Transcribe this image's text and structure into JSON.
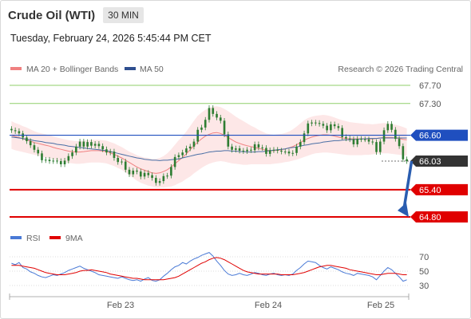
{
  "header": {
    "title": "Crude Oil (WTI)",
    "timeframe": "30 MIN",
    "datetime": "Tuesday, February 24, 2026 5:45:44 PM CET"
  },
  "legend": {
    "bb_label": "MA 20 + Bollinger Bands",
    "ma50_label": "MA 50",
    "credit": "Research © 2026 Trading Central",
    "rsi_label": "RSI",
    "rsi_ma_label": "9MA"
  },
  "colors": {
    "bollinger_fill": "#fde3e3",
    "ma20": "#f08080",
    "ma50": "#4a6fa5",
    "candle": "#2e7d32",
    "resistance_light": "#8fcf6a",
    "support": "#e00000",
    "pivot": "#1f4fbf",
    "arrow": "#2a5db0",
    "rsi": "#4a7ad6",
    "rsi_ma": "#e00000"
  },
  "chart_data": [
    {
      "type": "candlestick",
      "title": "",
      "ylim": [
        64.6,
        67.8
      ],
      "x_ticks": [
        "Feb 23",
        "Feb 24",
        "Feb 25"
      ],
      "price_levels": [
        {
          "value": "67.70",
          "kind": "resistance",
          "style": "plain"
        },
        {
          "value": "67.30",
          "kind": "resistance",
          "style": "plain"
        },
        {
          "value": "66.60",
          "kind": "pivot",
          "style": "box"
        },
        {
          "value": "66.03",
          "kind": "last",
          "style": "box-dark"
        },
        {
          "value": "65.40",
          "kind": "support",
          "style": "box"
        },
        {
          "value": "64.80",
          "kind": "support",
          "style": "box"
        }
      ],
      "close": [
        66.71,
        66.69,
        66.64,
        66.55,
        66.47,
        66.38,
        66.28,
        66.2,
        66.05,
        66.06,
        66.03,
        66.04,
        66.03,
        65.96,
        66.04,
        66.14,
        66.22,
        66.35,
        66.46,
        66.35,
        66.45,
        66.37,
        66.41,
        66.36,
        66.29,
        66.22,
        66.24,
        66.1,
        66.01,
        66.02,
        65.84,
        65.74,
        65.82,
        65.8,
        65.69,
        65.77,
        65.72,
        65.66,
        65.55,
        65.59,
        65.7,
        65.71,
        65.9,
        66.12,
        66.16,
        66.22,
        66.31,
        66.35,
        66.46,
        66.72,
        66.77,
        66.94,
        67.2,
        67.07,
        66.99,
        66.92,
        66.62,
        66.35,
        66.28,
        66.31,
        66.26,
        66.25,
        66.28,
        66.27,
        66.4,
        66.33,
        66.32,
        66.19,
        66.27,
        66.28,
        66.26,
        66.24,
        66.24,
        66.2,
        66.21,
        66.35,
        66.45,
        66.64,
        66.86,
        66.88,
        66.87,
        66.85,
        66.81,
        66.71,
        66.84,
        66.8,
        66.76,
        66.56,
        66.53,
        66.51,
        66.4,
        66.52,
        66.51,
        66.51,
        66.46,
        66.45,
        66.23,
        66.46,
        66.71,
        66.85,
        66.72,
        66.52,
        66.36,
        66.07,
        66.03
      ],
      "ma20": [
        66.6,
        66.57,
        66.55,
        66.52,
        66.5,
        66.47,
        66.44,
        66.42,
        66.4,
        66.38,
        66.36,
        66.33,
        66.31,
        66.29,
        66.27,
        66.25,
        66.24,
        66.23,
        66.23,
        66.24,
        66.25,
        66.26,
        66.26,
        66.26,
        66.25,
        66.24,
        66.21,
        66.18,
        66.14,
        66.1,
        66.05,
        66.0,
        65.95,
        65.9,
        65.86,
        65.83,
        65.8,
        65.77,
        65.76,
        65.77,
        65.8,
        65.84,
        65.9,
        65.97,
        66.04,
        66.11,
        66.19,
        66.28,
        66.37,
        66.45,
        66.52,
        66.58,
        66.62,
        66.65,
        66.66,
        66.64,
        66.6,
        66.55,
        66.5,
        66.45,
        66.42,
        66.39,
        66.37,
        66.35,
        66.33,
        66.31,
        66.29,
        66.27,
        66.26,
        66.26,
        66.27,
        66.28,
        66.3,
        66.32,
        66.35,
        66.39,
        66.44,
        66.49,
        66.53,
        66.56,
        66.58,
        66.6,
        66.61,
        66.61,
        66.6,
        66.58,
        66.56,
        66.54,
        66.53,
        66.52,
        66.52,
        66.52,
        66.52,
        66.52,
        66.52,
        66.52,
        66.53,
        66.54,
        66.55,
        66.55,
        66.55,
        66.54,
        66.53,
        66.51,
        66.5
      ],
      "bb_upper": [
        66.91,
        66.87,
        66.84,
        66.8,
        66.77,
        66.73,
        66.69,
        66.66,
        66.64,
        66.62,
        66.6,
        66.57,
        66.55,
        66.53,
        66.51,
        66.49,
        66.48,
        66.47,
        66.47,
        66.48,
        66.49,
        66.5,
        66.5,
        66.5,
        66.49,
        66.48,
        66.45,
        66.42,
        66.38,
        66.34,
        66.29,
        66.24,
        66.2,
        66.16,
        66.13,
        66.11,
        66.1,
        66.08,
        66.08,
        66.1,
        66.14,
        66.2,
        66.29,
        66.39,
        66.49,
        66.58,
        66.68,
        66.8,
        66.92,
        67.03,
        67.1,
        67.16,
        67.2,
        67.23,
        67.24,
        67.22,
        67.18,
        67.13,
        67.07,
        67.01,
        66.96,
        66.91,
        66.86,
        66.81,
        66.77,
        66.72,
        66.68,
        66.64,
        66.62,
        66.61,
        66.62,
        66.63,
        66.65,
        66.68,
        66.73,
        66.79,
        66.86,
        66.93,
        66.98,
        67.01,
        67.03,
        67.04,
        67.05,
        67.04,
        67.02,
        66.99,
        66.96,
        66.93,
        66.91,
        66.89,
        66.88,
        66.87,
        66.86,
        66.85,
        66.85,
        66.84,
        66.85,
        66.86,
        66.87,
        66.86,
        66.85,
        66.83,
        66.81,
        66.78,
        66.75
      ],
      "bb_lower": [
        66.3,
        66.27,
        66.25,
        66.23,
        66.21,
        66.19,
        66.17,
        66.15,
        66.13,
        66.11,
        66.09,
        66.07,
        66.05,
        66.03,
        66.01,
        65.99,
        65.98,
        65.97,
        65.97,
        65.98,
        65.99,
        66.0,
        66.0,
        66.0,
        65.99,
        65.98,
        65.95,
        65.92,
        65.88,
        65.84,
        65.78,
        65.72,
        65.66,
        65.6,
        65.55,
        65.52,
        65.49,
        65.47,
        65.45,
        65.45,
        65.45,
        65.46,
        65.47,
        65.5,
        65.54,
        65.58,
        65.64,
        65.69,
        65.76,
        65.82,
        65.88,
        65.93,
        65.97,
        66.0,
        66.02,
        66.03,
        66.02,
        66.0,
        65.98,
        65.97,
        65.96,
        65.95,
        65.95,
        65.96,
        65.96,
        65.96,
        65.96,
        65.96,
        65.96,
        65.97,
        65.98,
        65.99,
        66.01,
        66.02,
        66.04,
        66.06,
        66.09,
        66.12,
        66.15,
        66.18,
        66.2,
        66.21,
        66.22,
        66.22,
        66.21,
        66.2,
        66.19,
        66.18,
        66.17,
        66.16,
        66.16,
        66.16,
        66.16,
        66.17,
        66.17,
        66.18,
        66.19,
        66.2,
        66.2,
        66.2,
        66.19,
        66.18,
        66.17,
        66.16,
        66.15
      ],
      "ma50": [
        66.56,
        66.55,
        66.54,
        66.53,
        66.51,
        66.5,
        66.48,
        66.47,
        66.46,
        66.44,
        66.43,
        66.42,
        66.4,
        66.39,
        66.38,
        66.36,
        66.35,
        66.34,
        66.33,
        66.32,
        66.31,
        66.3,
        66.29,
        66.28,
        66.27,
        66.26,
        66.24,
        66.22,
        66.2,
        66.18,
        66.16,
        66.14,
        66.12,
        66.1,
        66.09,
        66.07,
        66.06,
        66.05,
        66.05,
        66.04,
        66.05,
        66.05,
        66.06,
        66.07,
        66.08,
        66.1,
        66.12,
        66.14,
        66.16,
        66.18,
        66.19,
        66.21,
        66.23,
        66.24,
        66.25,
        66.25,
        66.26,
        66.26,
        66.25,
        66.25,
        66.24,
        66.24,
        66.23,
        66.23,
        66.23,
        66.24,
        66.24,
        66.25,
        66.26,
        66.27,
        66.28,
        66.29,
        66.3,
        66.32,
        66.33,
        66.34,
        66.36,
        66.38,
        66.39,
        66.41,
        66.42,
        66.43,
        66.45,
        66.46,
        66.47,
        66.48,
        66.48,
        66.49,
        66.5,
        66.5,
        66.51,
        66.51,
        66.52,
        66.52,
        66.53,
        66.53,
        66.53,
        66.54,
        66.54,
        66.54,
        66.54,
        66.54,
        66.54,
        66.54,
        66.54
      ],
      "forecast": {
        "from": 66.03,
        "to": 64.8
      }
    },
    {
      "type": "line",
      "title": "",
      "ylim": [
        20,
        80
      ],
      "y_ticks": [
        30,
        50,
        70
      ],
      "series": [
        {
          "name": "RSI",
          "values": [
            61,
            59,
            62,
            55,
            53,
            49,
            47,
            44,
            42,
            41,
            43,
            45,
            44,
            46,
            48,
            51,
            53,
            55,
            57,
            54,
            52,
            50,
            48,
            45,
            44,
            43,
            42,
            41,
            40,
            42,
            40,
            38,
            37,
            38,
            36,
            39,
            41,
            37,
            36,
            38,
            43,
            47,
            52,
            56,
            58,
            62,
            60,
            64,
            67,
            69,
            72,
            74,
            76,
            71,
            64,
            58,
            51,
            46,
            44,
            45,
            47,
            45,
            44,
            46,
            48,
            47,
            45,
            44,
            46,
            47,
            45,
            44,
            45,
            44,
            46,
            51,
            55,
            60,
            64,
            63,
            62,
            58,
            55,
            53,
            56,
            54,
            52,
            49,
            47,
            46,
            44,
            47,
            46,
            45,
            44,
            42,
            38,
            44,
            50,
            55,
            52,
            47,
            42,
            36,
            38
          ]
        },
        {
          "name": "9MA",
          "values": [
            58,
            58,
            58,
            57,
            56,
            55,
            54,
            52,
            50,
            48,
            47,
            46,
            45,
            45,
            45,
            46,
            47,
            48,
            50,
            51,
            51,
            52,
            51,
            50,
            49,
            48,
            46,
            45,
            44,
            43,
            42,
            41,
            40,
            40,
            39,
            38,
            38,
            38,
            38,
            38,
            38,
            39,
            40,
            41,
            43,
            46,
            49,
            52,
            55,
            58,
            61,
            63,
            66,
            68,
            69,
            68,
            66,
            63,
            60,
            57,
            54,
            51,
            49,
            48,
            47,
            46,
            46,
            46,
            46,
            46,
            46,
            45,
            45,
            45,
            45,
            46,
            47,
            48,
            50,
            52,
            54,
            56,
            57,
            58,
            58,
            57,
            56,
            55,
            54,
            52,
            51,
            50,
            49,
            48,
            47,
            46,
            45,
            45,
            46,
            47,
            47,
            47,
            46,
            45,
            45
          ]
        }
      ]
    }
  ]
}
